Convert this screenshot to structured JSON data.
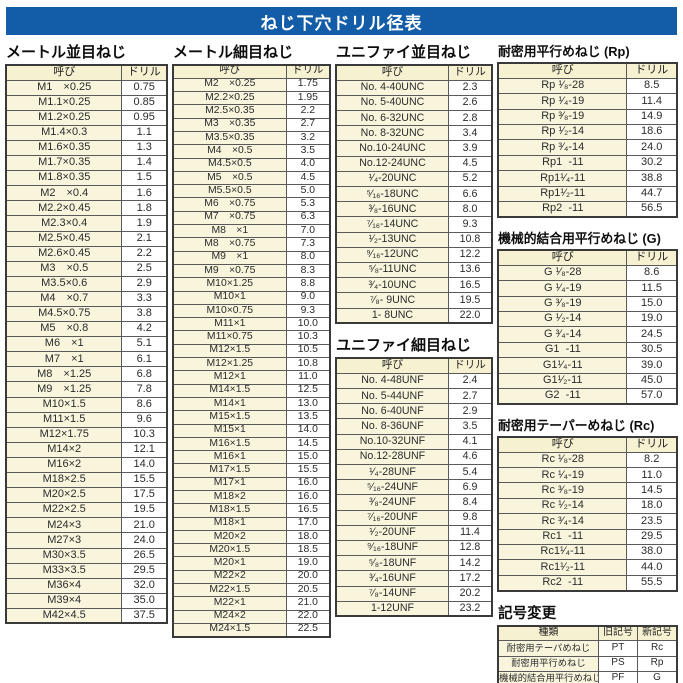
{
  "title": "ねじ下穴ドリル径表",
  "colors": {
    "title_bar": "#135ca8",
    "header_bg": "#f6f1d0",
    "name_bg": "#f9f5dc",
    "value_bg": "#ffffff",
    "border_dark": "#3a3a3a"
  },
  "sections": [
    {
      "id": "metric-coarse",
      "title": "メートル並目ねじ",
      "headers": [
        "呼び",
        "ドリル"
      ],
      "rows": [
        [
          "M1　×0.25",
          "0.75"
        ],
        [
          "M1.1×0.25",
          "0.85"
        ],
        [
          "M1.2×0.25",
          "0.95"
        ],
        [
          "M1.4×0.3",
          "1.1"
        ],
        [
          "M1.6×0.35",
          "1.3"
        ],
        [
          "M1.7×0.35",
          "1.4"
        ],
        [
          "M1.8×0.35",
          "1.5"
        ],
        [
          "M2　×0.4",
          "1.6"
        ],
        [
          "M2.2×0.45",
          "1.8"
        ],
        [
          "M2.3×0.4",
          "1.9"
        ],
        [
          "M2.5×0.45",
          "2.1"
        ],
        [
          "M2.6×0.45",
          "2.2"
        ],
        [
          "M3　×0.5",
          "2.5"
        ],
        [
          "M3.5×0.6",
          "2.9"
        ],
        [
          "M4　×0.7",
          "3.3"
        ],
        [
          "M4.5×0.75",
          "3.8"
        ],
        [
          "M5　×0.8",
          "4.2"
        ],
        [
          "M6　×1",
          "5.1"
        ],
        [
          "M7　×1",
          "6.1"
        ],
        [
          "M8　×1.25",
          "6.8"
        ],
        [
          "M9　×1.25",
          "7.8"
        ],
        [
          "M10×1.5",
          "8.6"
        ],
        [
          "M11×1.5",
          "9.6"
        ],
        [
          "M12×1.75",
          "10.3"
        ],
        [
          "M14×2",
          "12.1"
        ],
        [
          "M16×2",
          "14.0"
        ],
        [
          "M18×2.5",
          "15.5"
        ],
        [
          "M20×2.5",
          "17.5"
        ],
        [
          "M22×2.5",
          "19.5"
        ],
        [
          "M24×3",
          "21.0"
        ],
        [
          "M27×3",
          "24.0"
        ],
        [
          "M30×3.5",
          "26.5"
        ],
        [
          "M33×3.5",
          "29.5"
        ],
        [
          "M36×4",
          "32.0"
        ],
        [
          "M39×4",
          "35.0"
        ],
        [
          "M42×4.5",
          "37.5"
        ]
      ]
    },
    {
      "id": "metric-fine",
      "title": "メートル細目ねじ",
      "headers": [
        "呼び",
        "ドリル"
      ],
      "rows": [
        [
          "M2　×0.25",
          "1.75"
        ],
        [
          "M2.2×0.25",
          "1.95"
        ],
        [
          "M2.5×0.35",
          "2.2"
        ],
        [
          "M3　×0.35",
          "2.7"
        ],
        [
          "M3.5×0.35",
          "3.2"
        ],
        [
          "M4　×0.5",
          "3.5"
        ],
        [
          "M4.5×0.5",
          "4.0"
        ],
        [
          "M5　×0.5",
          "4.5"
        ],
        [
          "M5.5×0.5",
          "5.0"
        ],
        [
          "M6　×0.75",
          "5.3"
        ],
        [
          "M7　×0.75",
          "6.3"
        ],
        [
          "M8　×1",
          "7.0"
        ],
        [
          "M8　×0.75",
          "7.3"
        ],
        [
          "M9　×1",
          "8.0"
        ],
        [
          "M9　×0.75",
          "8.3"
        ],
        [
          "M10×1.25",
          "8.8"
        ],
        [
          "M10×1",
          "9.0"
        ],
        [
          "M10×0.75",
          "9.3"
        ],
        [
          "M11×1",
          "10.0"
        ],
        [
          "M11×0.75",
          "10.3"
        ],
        [
          "M12×1.5",
          "10.5"
        ],
        [
          "M12×1.25",
          "10.8"
        ],
        [
          "M12×1",
          "11.0"
        ],
        [
          "M14×1.5",
          "12.5"
        ],
        [
          "M14×1",
          "13.0"
        ],
        [
          "M15×1.5",
          "13.5"
        ],
        [
          "M15×1",
          "14.0"
        ],
        [
          "M16×1.5",
          "14.5"
        ],
        [
          "M16×1",
          "15.0"
        ],
        [
          "M17×1.5",
          "15.5"
        ],
        [
          "M17×1",
          "16.0"
        ],
        [
          "M18×2",
          "16.0"
        ],
        [
          "M18×1.5",
          "16.5"
        ],
        [
          "M18×1",
          "17.0"
        ],
        [
          "M20×2",
          "18.0"
        ],
        [
          "M20×1.5",
          "18.5"
        ],
        [
          "M20×1",
          "19.0"
        ],
        [
          "M22×2",
          "20.0"
        ],
        [
          "M22×1.5",
          "20.5"
        ],
        [
          "M22×1",
          "21.0"
        ],
        [
          "M24×2",
          "22.0"
        ],
        [
          "M24×1.5",
          "22.5"
        ]
      ]
    },
    {
      "id": "unified-coarse",
      "title": "ユニファイ並目ねじ",
      "headers": [
        "呼び",
        "ドリル"
      ],
      "rows": [
        [
          "No. 4-40UNC",
          "2.3"
        ],
        [
          "No. 5-40UNC",
          "2.6"
        ],
        [
          "No. 6-32UNC",
          "2.8"
        ],
        [
          "No. 8-32UNC",
          "3.4"
        ],
        [
          "No.10-24UNC",
          "3.9"
        ],
        [
          "No.12-24UNC",
          "4.5"
        ],
        [
          "¹⁄₄-20UNC",
          "5.2"
        ],
        [
          "⁵⁄₁₆-18UNC",
          "6.6"
        ],
        [
          "³⁄₈-16UNC",
          "8.0"
        ],
        [
          "⁷⁄₁₆-14UNC",
          "9.3"
        ],
        [
          "¹⁄₂-13UNC",
          "10.8"
        ],
        [
          "⁹⁄₁₆-12UNC",
          "12.2"
        ],
        [
          "⁵⁄₈-11UNC",
          "13.6"
        ],
        [
          "³⁄₄-10UNC",
          "16.5"
        ],
        [
          "⁷⁄₈- 9UNC",
          "19.5"
        ],
        [
          "1- 8UNC",
          "22.0"
        ]
      ]
    },
    {
      "id": "unified-fine",
      "title": "ユニファイ細目ねじ",
      "headers": [
        "呼び",
        "ドリル"
      ],
      "rows": [
        [
          "No. 4-48UNF",
          "2.4"
        ],
        [
          "No. 5-44UNF",
          "2.7"
        ],
        [
          "No. 6-40UNF",
          "2.9"
        ],
        [
          "No. 8-36UNF",
          "3.5"
        ],
        [
          "No.10-32UNF",
          "4.1"
        ],
        [
          "No.12-28UNF",
          "4.6"
        ],
        [
          "¹⁄₄-28UNF",
          "5.4"
        ],
        [
          "⁵⁄₁₆-24UNF",
          "6.9"
        ],
        [
          "³⁄₈-24UNF",
          "8.4"
        ],
        [
          "⁷⁄₁₆-20UNF",
          "9.8"
        ],
        [
          "¹⁄₂-20UNF",
          "11.4"
        ],
        [
          "⁹⁄₁₆-18UNF",
          "12.8"
        ],
        [
          "⁵⁄₈-18UNF",
          "14.2"
        ],
        [
          "³⁄₄-16UNF",
          "17.2"
        ],
        [
          "⁷⁄₈-14UNF",
          "20.2"
        ],
        [
          "1-12UNF",
          "23.2"
        ]
      ]
    },
    {
      "id": "rp",
      "title": "耐密用平行めねじ (Rp)",
      "headers": [
        "呼び",
        "ドリル"
      ],
      "rows": [
        [
          "Rp ¹⁄₈-28",
          "8.5"
        ],
        [
          "Rp ¹⁄₄-19",
          "11.4"
        ],
        [
          "Rp ³⁄₈-19",
          "14.9"
        ],
        [
          "Rp ¹⁄₂-14",
          "18.6"
        ],
        [
          "Rp ³⁄₄-14",
          "24.0"
        ],
        [
          "Rp1  -11",
          "30.2"
        ],
        [
          "Rp1¹⁄₄-11",
          "38.8"
        ],
        [
          "Rp1¹⁄₂-11",
          "44.7"
        ],
        [
          "Rp2  -11",
          "56.5"
        ]
      ]
    },
    {
      "id": "g",
      "title": "機械的結合用平行めねじ (G)",
      "headers": [
        "呼び",
        "ドリル"
      ],
      "rows": [
        [
          "G ¹⁄₈-28",
          "8.6"
        ],
        [
          "G ¹⁄₄-19",
          "11.5"
        ],
        [
          "G ³⁄₈-19",
          "15.0"
        ],
        [
          "G ¹⁄₂-14",
          "19.0"
        ],
        [
          "G ³⁄₄-14",
          "24.5"
        ],
        [
          "G1  -11",
          "30.5"
        ],
        [
          "G1¹⁄₄-11",
          "39.0"
        ],
        [
          "G1¹⁄₂-11",
          "45.0"
        ],
        [
          "G2  -11",
          "57.0"
        ]
      ]
    },
    {
      "id": "rc",
      "title": "耐密用テーパーめねじ (Rc)",
      "headers": [
        "呼び",
        "ドリル"
      ],
      "rows": [
        [
          "Rc ¹⁄₈-28",
          "8.2"
        ],
        [
          "Rc ¹⁄₄-19",
          "11.0"
        ],
        [
          "Rc ³⁄₈-19",
          "14.5"
        ],
        [
          "Rc ¹⁄₂-14",
          "18.0"
        ],
        [
          "Rc ³⁄₄-14",
          "23.5"
        ],
        [
          "Rc1  -11",
          "29.5"
        ],
        [
          "Rc1¹⁄₄-11",
          "38.0"
        ],
        [
          "Rc1¹⁄₂-11",
          "44.0"
        ],
        [
          "Rc2  -11",
          "55.5"
        ]
      ]
    },
    {
      "id": "symbol-change",
      "title": "記号変更",
      "headers": [
        "種類",
        "旧記号",
        "新記号"
      ],
      "rows": [
        [
          "耐密用テーパめねじ",
          "PT",
          "Rc"
        ],
        [
          "耐密用平行めねじ",
          "PS",
          "Rp"
        ],
        [
          "機械的結合用平行めねじ",
          "PF",
          "G"
        ]
      ]
    }
  ]
}
